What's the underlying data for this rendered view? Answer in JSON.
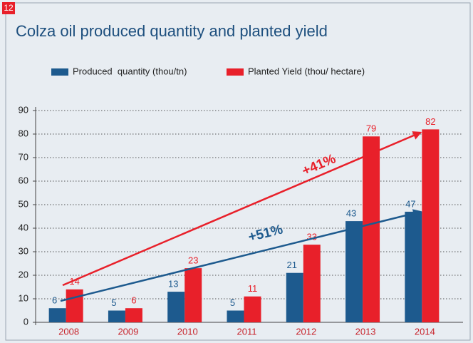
{
  "page_number": "12",
  "chart_data": {
    "type": "bar",
    "title": "Colza oil produced quantity and planted yield",
    "categories": [
      "2008",
      "2009",
      "2010",
      "2011",
      "2012",
      "2013",
      "2014"
    ],
    "series": [
      {
        "name": "Produced  quantity (thou/tn)",
        "color": "#1d5a8e",
        "values": [
          6,
          5,
          13,
          5,
          21,
          43,
          47
        ]
      },
      {
        "name": "Planted Yield (thou/ hectare)",
        "color": "#e8202a",
        "values": [
          14,
          6,
          23,
          11,
          33,
          79,
          82
        ]
      }
    ],
    "annotations": [
      "+41%",
      "+51%"
    ],
    "ylim": [
      0,
      90
    ],
    "yticks": [
      0,
      10,
      20,
      30,
      40,
      50,
      60,
      70,
      80,
      90
    ],
    "grid": true,
    "legend": "top"
  }
}
